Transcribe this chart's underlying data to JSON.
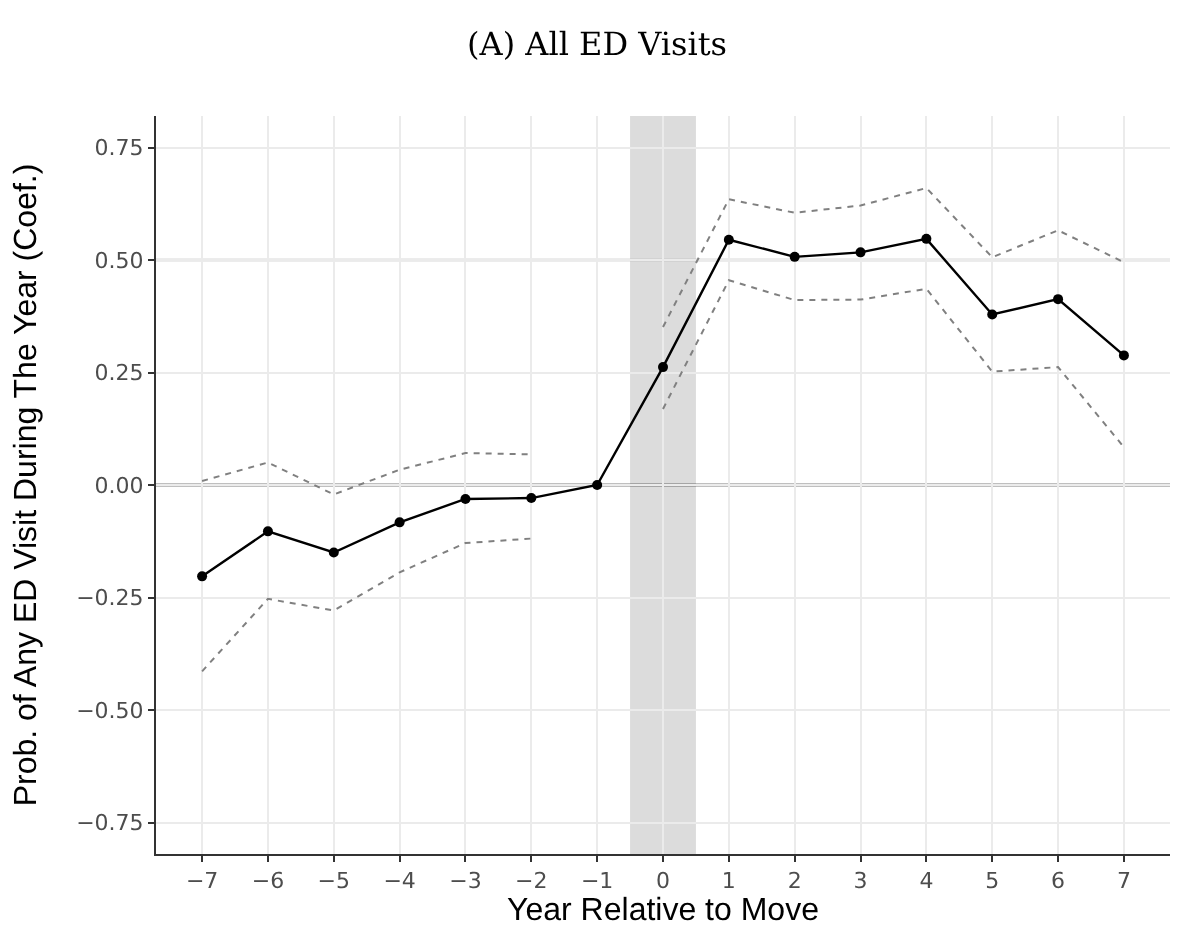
{
  "chart_data": {
    "type": "line",
    "title": "(A) All ED Visits",
    "xlabel": "Year Relative to Move",
    "ylabel": "Prob. of Any ED Visit During The Year (Coef.)",
    "series": [
      {
        "color": "#000000",
        "marker": "circle",
        "line_style": "solid",
        "x": [
          -7,
          -6,
          -5,
          -4,
          -3,
          -2,
          -1,
          0,
          1,
          2,
          3,
          4,
          5,
          6,
          7
        ],
        "values": [
          -0.203,
          -0.103,
          -0.15,
          -0.083,
          -0.031,
          -0.029,
          0,
          0.262,
          0.545,
          0.507,
          0.517,
          0.547,
          0.379,
          0.413,
          0.288
        ]
      },
      {
        "color": "#808080",
        "marker": "none",
        "line_style": "dotted",
        "x": [
          -7,
          -6,
          -5,
          -4,
          -3,
          -2
        ],
        "values": [
          0.009,
          0.05,
          -0.021,
          0.034,
          0.071,
          0.068
        ]
      },
      {
        "color": "#808080",
        "marker": "none",
        "line_style": "dotted",
        "x": [
          -7,
          -6,
          -5,
          -4,
          -3,
          -2
        ],
        "values": [
          -0.414,
          -0.253,
          -0.279,
          -0.194,
          -0.129,
          -0.119
        ]
      },
      {
        "color": "#808080",
        "marker": "none",
        "line_style": "dotted",
        "x": [
          0,
          1,
          2,
          3,
          4,
          5,
          6,
          7
        ],
        "values": [
          0.351,
          0.635,
          0.605,
          0.621,
          0.66,
          0.506,
          0.566,
          0.495
        ]
      },
      {
        "color": "#808080",
        "marker": "none",
        "line_style": "dotted",
        "x": [
          0,
          1,
          2,
          3,
          4,
          5,
          6,
          7
        ],
        "values": [
          0.169,
          0.455,
          0.411,
          0.412,
          0.436,
          0.252,
          0.262,
          0.084
        ]
      }
    ],
    "xlim": [
      -7.7,
      7.7
    ],
    "xticks": [
      {
        "value": -7,
        "label": "−7"
      },
      {
        "value": -6,
        "label": "−6"
      },
      {
        "value": -5,
        "label": "−5"
      },
      {
        "value": -4,
        "label": "−4"
      },
      {
        "value": -3,
        "label": "−3"
      },
      {
        "value": -2,
        "label": "−2"
      },
      {
        "value": -1,
        "label": "−1"
      },
      0,
      1,
      2,
      3,
      4,
      5,
      6,
      7
    ],
    "ylim": [
      -0.82,
      0.82
    ],
    "yticks": [
      {
        "value": -0.75,
        "label": "−0.75"
      },
      {
        "value": -0.5,
        "label": "−0.50"
      },
      {
        "value": -0.25,
        "label": "−0.25"
      },
      {
        "value": 0,
        "label": "0.00"
      },
      {
        "value": 0.25,
        "label": "0.25"
      },
      {
        "value": 0.5,
        "label": "0.50"
      },
      {
        "value": 0.75,
        "label": "0.75"
      }
    ],
    "ref_lines": [
      {
        "axis": "y",
        "value": 0,
        "color": "#000000"
      },
      {
        "axis": "y",
        "value": 0.5,
        "color": "#b3b3b3"
      }
    ],
    "bands": [
      {
        "axis": "x",
        "from": -0.5,
        "to": 0.5,
        "color": "#dcdcdc"
      }
    ],
    "grid": true
  }
}
